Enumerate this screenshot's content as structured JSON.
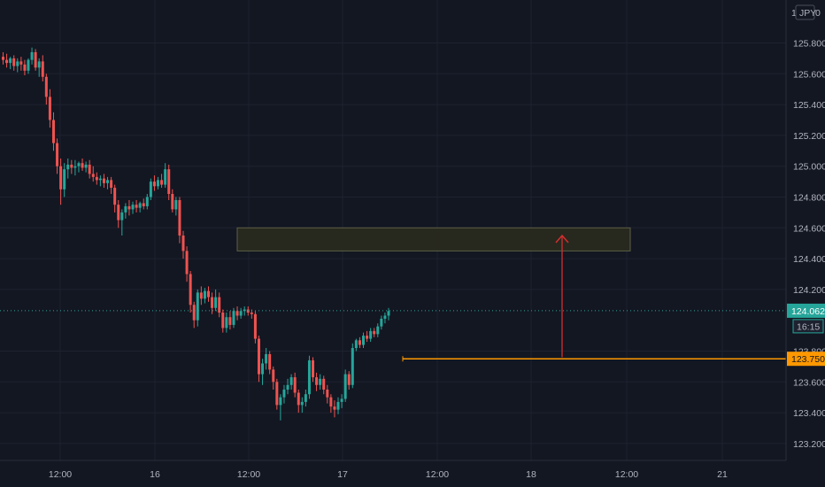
{
  "chart_data": {
    "type": "candlestick",
    "symbol_fragment": "1",
    "currency_label": "JPY",
    "currency_suffix": "0",
    "ylim": [
      123.1,
      126.0
    ],
    "y_ticks": [
      "125.800",
      "125.600",
      "125.400",
      "125.200",
      "125.000",
      "124.800",
      "124.600",
      "124.400",
      "124.200",
      "123.800",
      "123.600",
      "123.400",
      "123.200"
    ],
    "x_ticks": [
      "12:00",
      "16",
      "12:00",
      "17",
      "12:00",
      "18",
      "12:00",
      "21"
    ],
    "colors": {
      "up": "#26a69a",
      "down": "#ef5350",
      "background": "#131722",
      "grid": "#1e2230",
      "level": "#ff9800",
      "arrow": "#d32f2f",
      "zone_fill": "#2a2a1e",
      "zone_border": "#5d5f45"
    },
    "last_price": "124.062",
    "countdown": "16:15",
    "level_price": "123.750",
    "level_value": 123.75,
    "zone": {
      "from": 124.45,
      "to": 124.6
    },
    "arrow": {
      "from": 123.76,
      "to": 124.55
    },
    "candles": [
      [
        125.71,
        125.74,
        125.66,
        125.69
      ],
      [
        125.69,
        125.73,
        125.64,
        125.67
      ],
      [
        125.67,
        125.71,
        125.63,
        125.7
      ],
      [
        125.7,
        125.72,
        125.62,
        125.65
      ],
      [
        125.65,
        125.7,
        125.61,
        125.68
      ],
      [
        125.68,
        125.71,
        125.62,
        125.66
      ],
      [
        125.66,
        125.69,
        125.59,
        125.62
      ],
      [
        125.62,
        125.7,
        125.6,
        125.69
      ],
      [
        125.69,
        125.77,
        125.66,
        125.74
      ],
      [
        125.74,
        125.76,
        125.62,
        125.64
      ],
      [
        125.64,
        125.7,
        125.58,
        125.68
      ],
      [
        125.68,
        125.72,
        125.55,
        125.58
      ],
      [
        125.58,
        125.6,
        125.4,
        125.45
      ],
      [
        125.45,
        125.5,
        125.25,
        125.3
      ],
      [
        125.3,
        125.35,
        125.1,
        125.15
      ],
      [
        125.15,
        125.18,
        124.95,
        125.0
      ],
      [
        125.0,
        125.05,
        124.75,
        124.85
      ],
      [
        124.85,
        125.02,
        124.8,
        124.98
      ],
      [
        124.98,
        125.05,
        124.92,
        125.01
      ],
      [
        125.01,
        125.04,
        124.95,
        124.99
      ],
      [
        124.99,
        125.04,
        124.94,
        125.0
      ],
      [
        125.0,
        125.03,
        124.96,
        125.02
      ],
      [
        125.02,
        125.05,
        124.97,
        124.99
      ],
      [
        124.99,
        125.03,
        124.96,
        125.01
      ],
      [
        125.01,
        125.04,
        124.92,
        124.95
      ],
      [
        124.95,
        125.0,
        124.9,
        124.93
      ],
      [
        124.93,
        124.96,
        124.88,
        124.91
      ],
      [
        124.91,
        124.94,
        124.87,
        124.92
      ],
      [
        124.92,
        124.95,
        124.86,
        124.89
      ],
      [
        124.89,
        124.93,
        124.85,
        124.91
      ],
      [
        124.91,
        124.93,
        124.82,
        124.86
      ],
      [
        124.86,
        124.88,
        124.7,
        124.75
      ],
      [
        124.75,
        124.78,
        124.6,
        124.65
      ],
      [
        124.65,
        124.72,
        124.55,
        124.7
      ],
      [
        124.7,
        124.76,
        124.66,
        124.74
      ],
      [
        124.74,
        124.78,
        124.68,
        124.72
      ],
      [
        124.72,
        124.77,
        124.69,
        124.75
      ],
      [
        124.75,
        124.78,
        124.7,
        124.73
      ],
      [
        124.73,
        124.77,
        124.7,
        124.76
      ],
      [
        124.76,
        124.79,
        124.72,
        124.74
      ],
      [
        124.74,
        124.82,
        124.72,
        124.8
      ],
      [
        124.8,
        124.92,
        124.78,
        124.9
      ],
      [
        124.9,
        124.94,
        124.84,
        124.87
      ],
      [
        124.87,
        124.93,
        124.85,
        124.91
      ],
      [
        124.91,
        124.95,
        124.86,
        124.88
      ],
      [
        124.88,
        125.02,
        124.86,
        124.98
      ],
      [
        124.98,
        125.01,
        124.78,
        124.82
      ],
      [
        124.82,
        124.85,
        124.7,
        124.72
      ],
      [
        124.72,
        124.8,
        124.68,
        124.78
      ],
      [
        124.78,
        124.8,
        124.5,
        124.55
      ],
      [
        124.55,
        124.58,
        124.4,
        124.45
      ],
      [
        124.45,
        124.48,
        124.25,
        124.3
      ],
      [
        124.3,
        124.32,
        124.05,
        124.1
      ],
      [
        124.1,
        124.12,
        123.95,
        124.0
      ],
      [
        124.0,
        124.2,
        123.96,
        124.18
      ],
      [
        124.18,
        124.22,
        124.1,
        124.14
      ],
      [
        124.14,
        124.21,
        124.11,
        124.19
      ],
      [
        124.19,
        124.22,
        124.12,
        124.15
      ],
      [
        124.15,
        124.18,
        124.04,
        124.08
      ],
      [
        124.08,
        124.2,
        124.06,
        124.15
      ],
      [
        124.15,
        124.18,
        124.02,
        124.05
      ],
      [
        124.05,
        124.07,
        123.92,
        123.95
      ],
      [
        123.95,
        124.05,
        123.92,
        124.02
      ],
      [
        124.02,
        124.06,
        123.94,
        123.97
      ],
      [
        123.97,
        124.08,
        123.95,
        124.06
      ],
      [
        124.06,
        124.09,
        124.0,
        124.03
      ],
      [
        124.03,
        124.08,
        124.01,
        124.06
      ],
      [
        124.06,
        124.09,
        124.03,
        124.07
      ],
      [
        124.07,
        124.09,
        124.03,
        124.05
      ],
      [
        124.05,
        124.07,
        124.01,
        124.04
      ],
      [
        124.04,
        124.06,
        123.85,
        123.88
      ],
      [
        123.88,
        123.9,
        123.6,
        123.65
      ],
      [
        123.65,
        123.75,
        123.58,
        123.72
      ],
      [
        123.72,
        123.82,
        123.68,
        123.78
      ],
      [
        123.78,
        123.8,
        123.65,
        123.68
      ],
      [
        123.68,
        123.7,
        123.55,
        123.6
      ],
      [
        123.6,
        123.62,
        123.42,
        123.45
      ],
      [
        123.45,
        123.52,
        123.35,
        123.5
      ],
      [
        123.5,
        123.58,
        123.46,
        123.55
      ],
      [
        123.55,
        123.62,
        123.52,
        123.58
      ],
      [
        123.58,
        123.65,
        123.55,
        123.63
      ],
      [
        123.63,
        123.66,
        123.5,
        123.53
      ],
      [
        123.53,
        123.55,
        123.4,
        123.45
      ],
      [
        123.45,
        123.5,
        123.4,
        123.47
      ],
      [
        123.47,
        123.55,
        123.44,
        123.52
      ],
      [
        123.52,
        123.77,
        123.49,
        123.74
      ],
      [
        123.74,
        123.76,
        123.6,
        123.63
      ],
      [
        123.63,
        123.66,
        123.54,
        123.58
      ],
      [
        123.58,
        123.65,
        123.55,
        123.62
      ],
      [
        123.62,
        123.64,
        123.52,
        123.55
      ],
      [
        123.55,
        123.58,
        123.46,
        123.5
      ],
      [
        123.5,
        123.52,
        123.4,
        123.44
      ],
      [
        123.44,
        123.48,
        123.37,
        123.42
      ],
      [
        123.42,
        123.5,
        123.39,
        123.47
      ],
      [
        123.47,
        123.52,
        123.43,
        123.49
      ],
      [
        123.49,
        123.68,
        123.47,
        123.65
      ],
      [
        123.65,
        123.67,
        123.55,
        123.58
      ],
      [
        123.58,
        123.85,
        123.56,
        123.82
      ],
      [
        123.82,
        123.88,
        123.8,
        123.87
      ],
      [
        123.87,
        123.89,
        123.82,
        123.84
      ],
      [
        123.84,
        123.92,
        123.82,
        123.9
      ],
      [
        123.9,
        123.93,
        123.86,
        123.88
      ],
      [
        123.88,
        123.95,
        123.86,
        123.93
      ],
      [
        123.93,
        123.95,
        123.89,
        123.91
      ],
      [
        123.91,
        123.98,
        123.89,
        123.96
      ],
      [
        123.96,
        124.03,
        123.94,
        124.01
      ],
      [
        124.01,
        124.05,
        123.98,
        124.03
      ],
      [
        124.03,
        124.08,
        124.0,
        124.06
      ]
    ]
  }
}
